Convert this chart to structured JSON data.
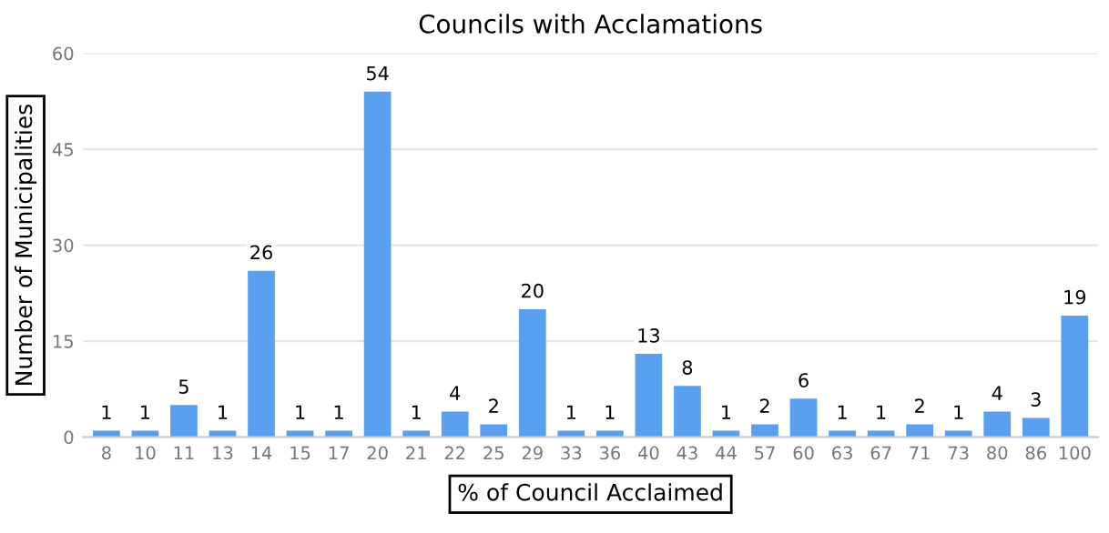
{
  "chart_data": {
    "type": "bar",
    "title": "Councils with Acclamations",
    "xlabel": "% of Council Acclaimed",
    "ylabel": "Number of Municipalities",
    "categories": [
      "8",
      "10",
      "11",
      "13",
      "14",
      "15",
      "17",
      "20",
      "21",
      "22",
      "25",
      "29",
      "33",
      "36",
      "40",
      "43",
      "44",
      "57",
      "60",
      "63",
      "67",
      "71",
      "73",
      "80",
      "86",
      "100"
    ],
    "values": [
      1,
      1,
      5,
      1,
      26,
      1,
      1,
      54,
      1,
      4,
      2,
      20,
      1,
      1,
      13,
      8,
      1,
      2,
      6,
      1,
      1,
      2,
      1,
      4,
      3,
      19
    ],
    "color": "#5aa0f0",
    "ylim": [
      0,
      60
    ],
    "yticks": [
      0,
      15,
      30,
      45,
      60
    ],
    "grid": "y",
    "data_labels": true
  }
}
